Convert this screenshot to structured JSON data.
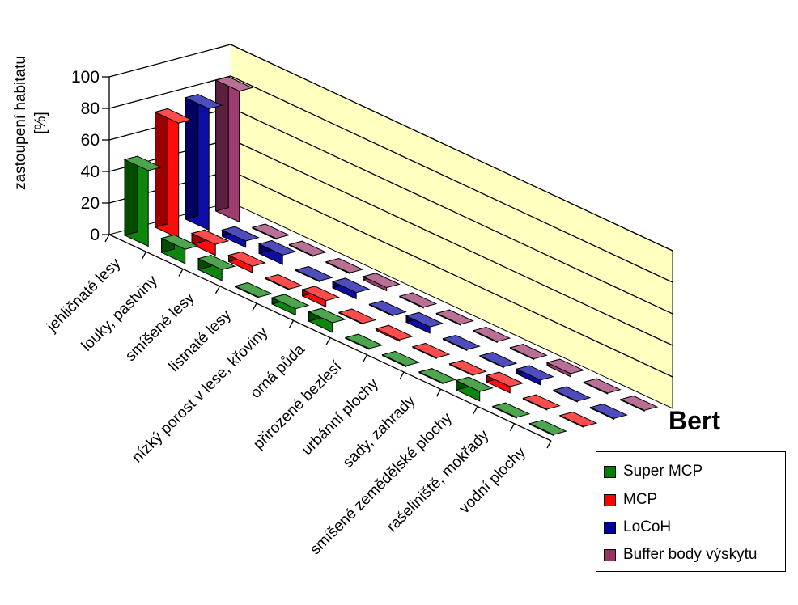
{
  "chart_data": {
    "type": "bar",
    "subtype": "3d-column",
    "title": "Bert",
    "ylabel_line1": "zastoupení habitatu",
    "ylabel_line2": "[%]",
    "xlabel": "",
    "ylim": [
      0,
      100
    ],
    "yticks": [
      "0",
      "20",
      "40",
      "60",
      "80",
      "100"
    ],
    "categories": [
      "jehličnaté lesy",
      "louky, pastviny",
      "smíšené lesy",
      "listnaté lesy",
      "nízký porost v lese, křoviny",
      "orná půda",
      "přirozené bezlesí",
      "urbánní plochy",
      "sady, zahrady",
      "smíšené zemědělské plochy",
      "rašeliniště, mokřady",
      "vodní plochy"
    ],
    "series": [
      {
        "name": "Super MCP",
        "color": "#008000",
        "values": [
          48,
          9,
          7,
          0.5,
          4,
          6,
          0.5,
          0.5,
          0.5,
          6,
          0.5,
          0.5
        ]
      },
      {
        "name": "MCP",
        "color": "#ff0000",
        "values": [
          73,
          7,
          4,
          0.5,
          4,
          0.5,
          1,
          0.5,
          0.5,
          4,
          0.5,
          0.5
        ]
      },
      {
        "name": "LoCoH",
        "color": "#0000a0",
        "values": [
          77,
          4,
          6,
          0.5,
          4,
          0.5,
          4,
          0.5,
          0.5,
          3,
          0.5,
          0.5
        ]
      },
      {
        "name": "Buffer body výskytu",
        "color": "#993366",
        "values": [
          83,
          0.5,
          0.5,
          0.5,
          2,
          0.5,
          0.5,
          0.5,
          0.5,
          2,
          0.5,
          0.5
        ]
      }
    ],
    "grid": true,
    "legend_position": "bottom-right",
    "wall_color": "#ffffc0"
  }
}
